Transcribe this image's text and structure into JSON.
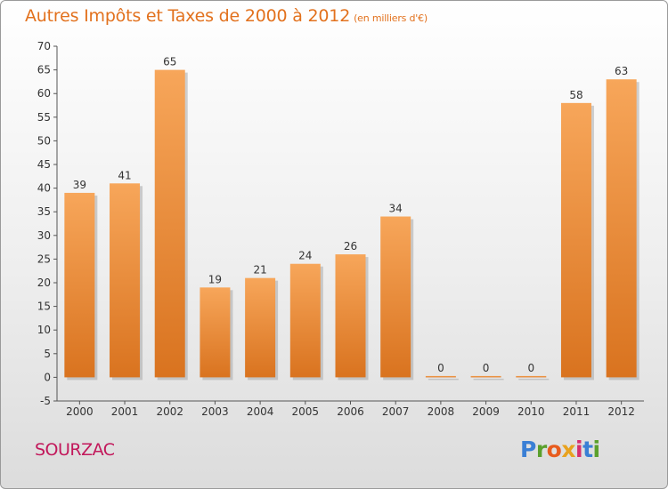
{
  "header": {
    "title": "Autres Impôts et Taxes de 2000 à 2012",
    "unit": "(en milliers d'€)"
  },
  "footer": {
    "commune": "SOURZAC"
  },
  "logo": {
    "letters": [
      "P",
      "r",
      "o",
      "x",
      "i",
      "t",
      "i"
    ],
    "colors": [
      "#3a7fd5",
      "#5aa02c",
      "#e85c1e",
      "#e8a21e",
      "#d62f6e",
      "#3a7fd5",
      "#5aa02c"
    ]
  },
  "colors": {
    "bar_light": "#f7a65a",
    "bar_dark": "#d9731f",
    "title": "#e2711d",
    "commune": "#c2185b"
  },
  "chart_data": {
    "type": "bar",
    "title": "Autres Impôts et Taxes de 2000 à 2012",
    "unit": "(en milliers d'€)",
    "categories": [
      "2000",
      "2001",
      "2002",
      "2003",
      "2004",
      "2005",
      "2006",
      "2007",
      "2008",
      "2009",
      "2010",
      "2011",
      "2012"
    ],
    "values": [
      39,
      41,
      65,
      19,
      21,
      24,
      26,
      34,
      0,
      0,
      0,
      58,
      63
    ],
    "ylim": [
      -5,
      70
    ],
    "yticks": [
      -5,
      0,
      5,
      10,
      15,
      20,
      25,
      30,
      35,
      40,
      45,
      50,
      55,
      60,
      65,
      70
    ],
    "grid": false,
    "xlabel": "",
    "ylabel": ""
  }
}
